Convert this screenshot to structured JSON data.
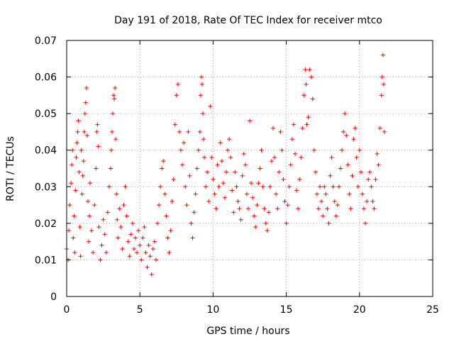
{
  "chart_data": {
    "type": "scatter",
    "title": "Day 191 of 2018, Rate Of TEC Index for receiver mtco",
    "xlabel": "GPS time / hours",
    "ylabel": "ROTI / TECUs",
    "xlim": [
      0,
      25
    ],
    "ylim": [
      0,
      0.07
    ],
    "xticks": [
      0,
      5,
      10,
      15,
      20,
      25
    ],
    "xtick_labels": [
      "0",
      "5",
      "10",
      "15",
      "20",
      "25"
    ],
    "yticks": [
      0,
      0.01,
      0.02,
      0.03,
      0.04,
      0.05,
      0.06,
      0.07
    ],
    "ytick_labels": [
      "0",
      "0.01",
      "0.02",
      "0.03",
      "0.04",
      "0.05",
      "0.06",
      "0.07"
    ],
    "grid": true,
    "marker": "plus",
    "color": "#ff0000",
    "series": [
      {
        "name": "ROTI",
        "points": [
          [
            0.0,
            0.013
          ],
          [
            0.1,
            0.01
          ],
          [
            0.15,
            0.018
          ],
          [
            0.2,
            0.025
          ],
          [
            0.3,
            0.031
          ],
          [
            0.35,
            0.036
          ],
          [
            0.4,
            0.04
          ],
          [
            0.45,
            0.016
          ],
          [
            0.5,
            0.022
          ],
          [
            0.55,
            0.012
          ],
          [
            0.6,
            0.029
          ],
          [
            0.65,
            0.038
          ],
          [
            0.7,
            0.042
          ],
          [
            0.75,
            0.045
          ],
          [
            0.8,
            0.048
          ],
          [
            0.85,
            0.034
          ],
          [
            0.9,
            0.019
          ],
          [
            0.95,
            0.011
          ],
          [
            1.0,
            0.04
          ],
          [
            1.05,
            0.028
          ],
          [
            1.1,
            0.033
          ],
          [
            1.15,
            0.037
          ],
          [
            1.2,
            0.045
          ],
          [
            1.25,
            0.05
          ],
          [
            1.3,
            0.053
          ],
          [
            1.35,
            0.057
          ],
          [
            1.4,
            0.044
          ],
          [
            1.45,
            0.026
          ],
          [
            1.5,
            0.015
          ],
          [
            1.55,
            0.022
          ],
          [
            1.6,
            0.031
          ],
          [
            1.7,
            0.018
          ],
          [
            1.8,
            0.012
          ],
          [
            1.9,
            0.025
          ],
          [
            2.0,
            0.035
          ],
          [
            2.05,
            0.045
          ],
          [
            2.1,
            0.047
          ],
          [
            2.15,
            0.041
          ],
          [
            2.2,
            0.019
          ],
          [
            2.3,
            0.01
          ],
          [
            2.4,
            0.014
          ],
          [
            2.5,
            0.021
          ],
          [
            2.6,
            0.017
          ],
          [
            2.7,
            0.012
          ],
          [
            2.8,
            0.023
          ],
          [
            2.9,
            0.03
          ],
          [
            3.0,
            0.035
          ],
          [
            3.05,
            0.04
          ],
          [
            3.1,
            0.045
          ],
          [
            3.15,
            0.05
          ],
          [
            3.2,
            0.055
          ],
          [
            3.25,
            0.054
          ],
          [
            3.3,
            0.057
          ],
          [
            3.35,
            0.043
          ],
          [
            3.4,
            0.028
          ],
          [
            3.45,
            0.021
          ],
          [
            3.5,
            0.016
          ],
          [
            3.6,
            0.024
          ],
          [
            3.7,
            0.019
          ],
          [
            3.8,
            0.013
          ],
          [
            3.9,
            0.025
          ],
          [
            4.0,
            0.03
          ],
          [
            4.1,
            0.022
          ],
          [
            4.2,
            0.015
          ],
          [
            4.3,
            0.011
          ],
          [
            4.4,
            0.017
          ],
          [
            4.5,
            0.02
          ],
          [
            4.6,
            0.013
          ],
          [
            4.7,
            0.016
          ],
          [
            4.8,
            0.012
          ],
          [
            4.9,
            0.018
          ],
          [
            5.0,
            0.014
          ],
          [
            5.1,
            0.01
          ],
          [
            5.2,
            0.016
          ],
          [
            5.3,
            0.019
          ],
          [
            5.4,
            0.012
          ],
          [
            5.5,
            0.008
          ],
          [
            5.6,
            0.014
          ],
          [
            5.7,
            0.011
          ],
          [
            5.8,
            0.006
          ],
          [
            5.9,
            0.013
          ],
          [
            6.0,
            0.015
          ],
          [
            6.1,
            0.01
          ],
          [
            6.2,
            0.02
          ],
          [
            6.3,
            0.025
          ],
          [
            6.4,
            0.03
          ],
          [
            6.5,
            0.035
          ],
          [
            6.6,
            0.037
          ],
          [
            6.7,
            0.028
          ],
          [
            6.8,
            0.022
          ],
          [
            6.9,
            0.016
          ],
          [
            7.0,
            0.012
          ],
          [
            7.1,
            0.018
          ],
          [
            7.2,
            0.026
          ],
          [
            7.3,
            0.032
          ],
          [
            7.4,
            0.047
          ],
          [
            7.5,
            0.055
          ],
          [
            7.6,
            0.058
          ],
          [
            7.7,
            0.045
          ],
          [
            7.8,
            0.04
          ],
          [
            7.9,
            0.036
          ],
          [
            8.0,
            0.042
          ],
          [
            8.1,
            0.03
          ],
          [
            8.2,
            0.025
          ],
          [
            8.3,
            0.045
          ],
          [
            8.4,
            0.033
          ],
          [
            8.5,
            0.02
          ],
          [
            8.6,
            0.016
          ],
          [
            8.7,
            0.023
          ],
          [
            8.8,
            0.028
          ],
          [
            8.9,
            0.035
          ],
          [
            9.0,
            0.04
          ],
          [
            9.1,
            0.045
          ],
          [
            9.15,
            0.055
          ],
          [
            9.2,
            0.06
          ],
          [
            9.25,
            0.058
          ],
          [
            9.3,
            0.05
          ],
          [
            9.35,
            0.043
          ],
          [
            9.4,
            0.038
          ],
          [
            9.5,
            0.03
          ],
          [
            9.6,
            0.034
          ],
          [
            9.7,
            0.026
          ],
          [
            9.8,
            0.052
          ],
          [
            9.9,
            0.038
          ],
          [
            10.0,
            0.032
          ],
          [
            10.1,
            0.028
          ],
          [
            10.2,
            0.024
          ],
          [
            10.3,
            0.036
          ],
          [
            10.4,
            0.03
          ],
          [
            10.5,
            0.042
          ],
          [
            10.6,
            0.037
          ],
          [
            10.7,
            0.031
          ],
          [
            10.8,
            0.027
          ],
          [
            10.9,
            0.034
          ],
          [
            11.0,
            0.04
          ],
          [
            11.1,
            0.043
          ],
          [
            11.2,
            0.038
          ],
          [
            11.3,
            0.029
          ],
          [
            11.4,
            0.023
          ],
          [
            11.5,
            0.034
          ],
          [
            11.6,
            0.03
          ],
          [
            11.7,
            0.026
          ],
          [
            11.8,
            0.024
          ],
          [
            11.9,
            0.021
          ],
          [
            12.0,
            0.033
          ],
          [
            12.1,
            0.039
          ],
          [
            12.2,
            0.036
          ],
          [
            12.3,
            0.028
          ],
          [
            12.4,
            0.024
          ],
          [
            12.5,
            0.048
          ],
          [
            12.6,
            0.031
          ],
          [
            12.7,
            0.027
          ],
          [
            12.8,
            0.022
          ],
          [
            12.9,
            0.019
          ],
          [
            13.0,
            0.025
          ],
          [
            13.1,
            0.031
          ],
          [
            13.2,
            0.035
          ],
          [
            13.3,
            0.04
          ],
          [
            13.4,
            0.03
          ],
          [
            13.5,
            0.024
          ],
          [
            13.6,
            0.02
          ],
          [
            13.7,
            0.018
          ],
          [
            13.8,
            0.023
          ],
          [
            13.9,
            0.03
          ],
          [
            14.0,
            0.037
          ],
          [
            14.1,
            0.046
          ],
          [
            14.2,
            0.038
          ],
          [
            14.3,
            0.028
          ],
          [
            14.4,
            0.024
          ],
          [
            14.5,
            0.034
          ],
          [
            14.6,
            0.045
          ],
          [
            14.7,
            0.04
          ],
          [
            14.8,
            0.032
          ],
          [
            14.9,
            0.026
          ],
          [
            15.0,
            0.02
          ],
          [
            15.1,
            0.025
          ],
          [
            15.2,
            0.03
          ],
          [
            15.3,
            0.036
          ],
          [
            15.4,
            0.043
          ],
          [
            15.5,
            0.047
          ],
          [
            15.6,
            0.039
          ],
          [
            15.7,
            0.029
          ],
          [
            15.8,
            0.024
          ],
          [
            15.9,
            0.032
          ],
          [
            16.0,
            0.038
          ],
          [
            16.1,
            0.046
          ],
          [
            16.2,
            0.055
          ],
          [
            16.3,
            0.062
          ],
          [
            16.35,
            0.058
          ],
          [
            16.4,
            0.047
          ],
          [
            16.5,
            0.049
          ],
          [
            16.6,
            0.062
          ],
          [
            16.7,
            0.06
          ],
          [
            16.8,
            0.054
          ],
          [
            16.9,
            0.04
          ],
          [
            17.0,
            0.034
          ],
          [
            17.1,
            0.028
          ],
          [
            17.2,
            0.024
          ],
          [
            17.3,
            0.03
          ],
          [
            17.4,
            0.026
          ],
          [
            17.5,
            0.022
          ],
          [
            17.6,
            0.03
          ],
          [
            17.7,
            0.028
          ],
          [
            17.8,
            0.024
          ],
          [
            17.9,
            0.02
          ],
          [
            18.0,
            0.033
          ],
          [
            18.1,
            0.038
          ],
          [
            18.2,
            0.03
          ],
          [
            18.3,
            0.026
          ],
          [
            18.4,
            0.022
          ],
          [
            18.5,
            0.025
          ],
          [
            18.6,
            0.03
          ],
          [
            18.7,
            0.035
          ],
          [
            18.8,
            0.04
          ],
          [
            18.9,
            0.045
          ],
          [
            19.0,
            0.05
          ],
          [
            19.1,
            0.044
          ],
          [
            19.2,
            0.036
          ],
          [
            19.3,
            0.028
          ],
          [
            19.4,
            0.024
          ],
          [
            19.5,
            0.033
          ],
          [
            19.6,
            0.043
          ],
          [
            19.7,
            0.046
          ],
          [
            19.8,
            0.038
          ],
          [
            19.9,
            0.03
          ],
          [
            20.0,
            0.04
          ],
          [
            20.1,
            0.034
          ],
          [
            20.2,
            0.028
          ],
          [
            20.3,
            0.024
          ],
          [
            20.4,
            0.02
          ],
          [
            20.5,
            0.026
          ],
          [
            20.6,
            0.032
          ],
          [
            20.7,
            0.034
          ],
          [
            20.8,
            0.03
          ],
          [
            20.9,
            0.026
          ],
          [
            21.0,
            0.024
          ],
          [
            21.1,
            0.032
          ],
          [
            21.2,
            0.039
          ],
          [
            21.3,
            0.036
          ],
          [
            21.4,
            0.046
          ],
          [
            21.5,
            0.055
          ],
          [
            21.55,
            0.06
          ],
          [
            21.6,
            0.066
          ],
          [
            21.65,
            0.058
          ],
          [
            21.7,
            0.045
          ]
        ]
      }
    ]
  }
}
